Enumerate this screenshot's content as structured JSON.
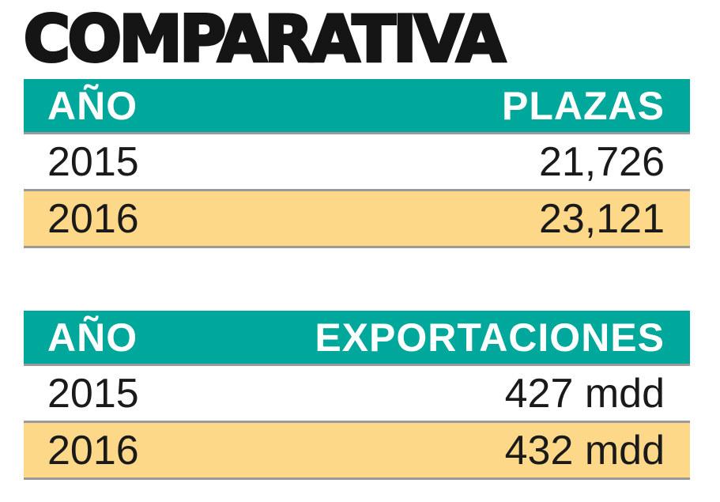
{
  "title": "COMPARATIVA",
  "colors": {
    "header_bg": "#00a89b",
    "header_text": "#ffffff",
    "alt_row_bg": "#fdd888",
    "row_bg": "#ffffff",
    "divider": "#9a9a9a",
    "text": "#1a1a1a"
  },
  "chart_data": [
    {
      "type": "table",
      "columns": [
        "AÑO",
        "PLAZAS"
      ],
      "rows": [
        {
          "year": "2015",
          "value": "21,726"
        },
        {
          "year": "2016",
          "value": "23,121"
        }
      ]
    },
    {
      "type": "table",
      "columns": [
        "AÑO",
        "EXPORTACIONES"
      ],
      "rows": [
        {
          "year": "2015",
          "value": "427 mdd"
        },
        {
          "year": "2016",
          "value": "432 mdd"
        }
      ]
    }
  ]
}
